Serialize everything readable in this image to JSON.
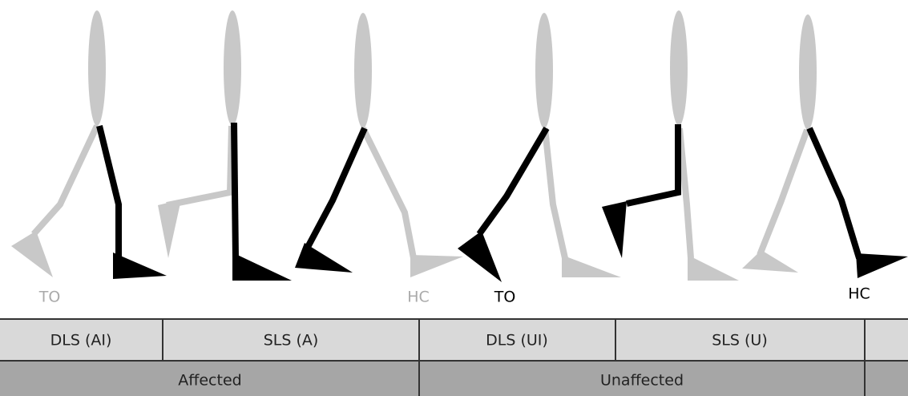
{
  "events": [
    {
      "label": "TO"
    },
    {
      "label": "HC"
    },
    {
      "label": "TO"
    },
    {
      "label": "HC"
    }
  ],
  "phases": [
    "DLS (AI)",
    "SLS (A)",
    "DLS (UI)",
    "SLS (U)"
  ],
  "sides": [
    "Affected",
    "Unaffected"
  ]
}
